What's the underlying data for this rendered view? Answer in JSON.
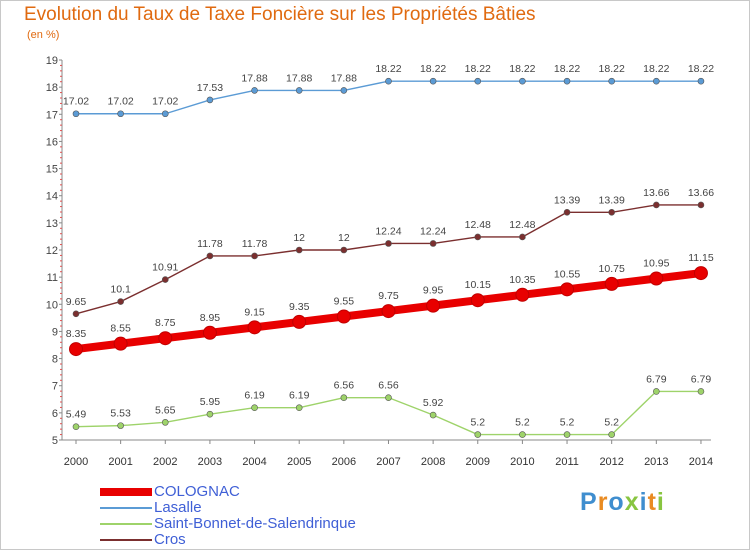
{
  "title": "Evolution du Taux de Taxe Foncière sur les Propriétés Bâties",
  "unit": "(en %)",
  "logo": {
    "letters": [
      "P",
      "r",
      "o",
      "x",
      "i",
      "t",
      "i"
    ],
    "colors": [
      "#3f8ecf",
      "#e98b22",
      "#3f8ecf",
      "#88c540",
      "#3f8ecf",
      "#e98b22",
      "#88c540"
    ]
  },
  "chart_data": {
    "type": "line",
    "x": [
      "2000",
      "2001",
      "2002",
      "2003",
      "2004",
      "2005",
      "2006",
      "2007",
      "2008",
      "2009",
      "2010",
      "2011",
      "2012",
      "2013",
      "2014"
    ],
    "ylim": [
      5,
      19
    ],
    "yticks": [
      "5",
      "6",
      "7",
      "8",
      "9",
      "10",
      "11",
      "12",
      "13",
      "14",
      "15",
      "16",
      "17",
      "18",
      "19"
    ],
    "grid": false,
    "legend_position": "bottom-left",
    "series": [
      {
        "name": "Lasalle",
        "color": "#5b9bd5",
        "values": [
          17.02,
          17.02,
          17.02,
          17.53,
          17.88,
          17.88,
          17.88,
          18.22,
          18.22,
          18.22,
          18.22,
          18.22,
          18.22,
          18.22,
          18.22
        ],
        "labels": [
          "17.02",
          "17.02",
          "17.02",
          "17.53",
          "17.88",
          "17.88",
          "17.88",
          "18.22",
          "18.22",
          "18.22",
          "18.22",
          "18.22",
          "18.22",
          "18.22",
          "18.22"
        ]
      },
      {
        "name": "Cros",
        "color": "#7b2f2f",
        "values": [
          9.65,
          10.1,
          10.91,
          11.78,
          11.78,
          12,
          12,
          12.24,
          12.24,
          12.48,
          12.48,
          13.39,
          13.39,
          13.66,
          13.66
        ],
        "labels": [
          "9.65",
          "10.1",
          "10.91",
          "11.78",
          "11.78",
          "12",
          "12",
          "12.24",
          "12.24",
          "12.48",
          "12.48",
          "13.39",
          "13.39",
          "13.66",
          "13.66"
        ]
      },
      {
        "name": "Saint-Bonnet-de-Salendrinque",
        "color": "#9ed36a",
        "values": [
          5.49,
          5.53,
          5.65,
          5.95,
          6.19,
          6.19,
          6.56,
          6.56,
          5.92,
          5.2,
          5.2,
          5.2,
          5.2,
          6.79,
          6.79
        ],
        "labels": [
          "5.49",
          "5.53",
          "5.65",
          "5.95",
          "6.19",
          "6.19",
          "6.56",
          "6.56",
          "5.92",
          "5.2",
          "5.2",
          "5.2",
          "5.2",
          "6.79",
          "6.79"
        ]
      },
      {
        "name": "COLOGNAC",
        "color": "#e80000",
        "values": [
          8.35,
          8.55,
          8.75,
          8.95,
          9.15,
          9.35,
          9.55,
          9.75,
          9.95,
          10.15,
          10.35,
          10.55,
          10.75,
          10.95,
          11.15
        ],
        "labels": [
          "8.35",
          "8.55",
          "8.75",
          "8.95",
          "9.15",
          "9.35",
          "9.55",
          "9.75",
          "9.95",
          "10.15",
          "10.35",
          "10.55",
          "10.75",
          "10.95",
          "11.15"
        ]
      }
    ],
    "legend": [
      {
        "name": "COLOGNAC",
        "color": "#e80000"
      },
      {
        "name": "Lasalle",
        "color": "#5b9bd5"
      },
      {
        "name": "Saint-Bonnet-de-Salendrinque",
        "color": "#9ed36a"
      },
      {
        "name": "Cros",
        "color": "#7b2f2f"
      }
    ]
  }
}
